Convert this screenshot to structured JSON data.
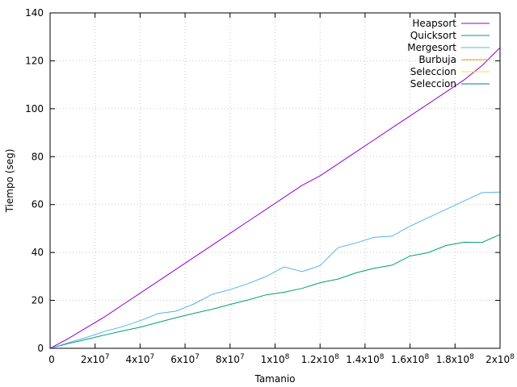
{
  "chart_data": {
    "type": "line",
    "xlabel": "Tamanio",
    "ylabel": "Tiempo (seg)",
    "xlim": [
      0,
      200000000
    ],
    "ylim": [
      0,
      140
    ],
    "grid": true,
    "legend_position": "top-right",
    "x_ticks": [
      {
        "value": 0,
        "label": "0"
      },
      {
        "value": 20000000,
        "base": "2x10",
        "exp": "7"
      },
      {
        "value": 40000000,
        "base": "4x10",
        "exp": "7"
      },
      {
        "value": 60000000,
        "base": "6x10",
        "exp": "7"
      },
      {
        "value": 80000000,
        "base": "8x10",
        "exp": "7"
      },
      {
        "value": 100000000,
        "base": "1x10",
        "exp": "8"
      },
      {
        "value": 120000000,
        "base": "1.2x10",
        "exp": "8"
      },
      {
        "value": 140000000,
        "base": "1.4x10",
        "exp": "8"
      },
      {
        "value": 160000000,
        "base": "1.6x10",
        "exp": "8"
      },
      {
        "value": 180000000,
        "base": "1.8x10",
        "exp": "8"
      },
      {
        "value": 200000000,
        "base": "2x10",
        "exp": "8"
      }
    ],
    "y_ticks": [
      {
        "value": 0,
        "label": "0"
      },
      {
        "value": 20,
        "label": "20"
      },
      {
        "value": 40,
        "label": "40"
      },
      {
        "value": 60,
        "label": "60"
      },
      {
        "value": 80,
        "label": "80"
      },
      {
        "value": 100,
        "label": "100"
      },
      {
        "value": 120,
        "label": "120"
      },
      {
        "value": 140,
        "label": "140"
      }
    ],
    "series": [
      {
        "name": "Heapsort",
        "color": "#9400d3",
        "x": [
          0,
          8000000,
          16000000,
          24000000,
          32000000,
          40000000,
          48000000,
          56000000,
          64000000,
          72000000,
          80000000,
          88000000,
          96000000,
          104000000,
          112000000,
          120000000,
          128000000,
          136000000,
          144000000,
          152000000,
          160000000,
          168000000,
          176000000,
          184000000,
          192000000,
          200000000
        ],
        "y": [
          0,
          4,
          8.5,
          13,
          18,
          23,
          28,
          33,
          38,
          43,
          48,
          53,
          58,
          63,
          68,
          72,
          77,
          82,
          87,
          92,
          97,
          102,
          107,
          112,
          118,
          125.5
        ]
      },
      {
        "name": "Quicksort",
        "color": "#009e73",
        "x": [
          0,
          8000000,
          16000000,
          24000000,
          32000000,
          40000000,
          48000000,
          56000000,
          64000000,
          72000000,
          80000000,
          88000000,
          96000000,
          104000000,
          112000000,
          120000000,
          128000000,
          136000000,
          144000000,
          152000000,
          160000000,
          168000000,
          176000000,
          184000000,
          192000000,
          200000000
        ],
        "y": [
          0,
          2,
          3.7,
          5.5,
          7.2,
          8.8,
          10.8,
          12.8,
          14.6,
          16.3,
          18.3,
          20.2,
          22.3,
          23.4,
          25,
          27.4,
          28.9,
          31.5,
          33.4,
          34.7,
          38.5,
          39.9,
          42.9,
          44.3,
          44.2,
          47.5
        ]
      },
      {
        "name": "Mergesort",
        "color": "#56b4e9",
        "x": [
          0,
          8000000,
          16000000,
          24000000,
          32000000,
          40000000,
          48000000,
          56000000,
          64000000,
          72000000,
          80000000,
          88000000,
          96000000,
          104000000,
          112000000,
          120000000,
          128000000,
          136000000,
          144000000,
          152000000,
          160000000,
          168000000,
          176000000,
          184000000,
          192000000,
          200000000
        ],
        "y": [
          0,
          2.3,
          4.5,
          7,
          9,
          11.5,
          14.5,
          15.5,
          18.5,
          22.5,
          24.5,
          27,
          30,
          34,
          32,
          34.5,
          42,
          44,
          46.3,
          46.8,
          51,
          54.5,
          58,
          61.5,
          65,
          65.2
        ]
      },
      {
        "name": "Burbuja",
        "color": "#e69f00",
        "x": [
          0
        ],
        "y": [
          0
        ]
      },
      {
        "name": "Seleccion",
        "color": "#f0e442",
        "x": [
          0
        ],
        "y": [
          0
        ]
      },
      {
        "name": "Seleccion",
        "color": "#0072b2",
        "x": [
          0
        ],
        "y": [
          0
        ]
      }
    ]
  }
}
